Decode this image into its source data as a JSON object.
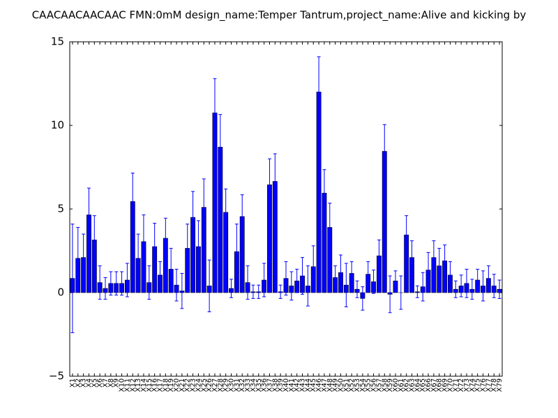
{
  "chart_data": {
    "type": "bar",
    "title": "CAACAACAACAAC  FMN:0mM  design_name:Temper Tantrum,project_name:Alive and kicking by",
    "categories": [
      "X1",
      "X2",
      "X3",
      "X4",
      "X5",
      "X6",
      "X7",
      "X8",
      "X9",
      "X10",
      "X11",
      "X12",
      "X13",
      "X14",
      "X15",
      "X16",
      "X17",
      "X18",
      "X19",
      "X20",
      "X21",
      "X22",
      "X23",
      "X24",
      "X25",
      "X26",
      "X27",
      "X28",
      "X29",
      "X30",
      "X31",
      "X32",
      "X33",
      "X34",
      "X35",
      "X36",
      "X37",
      "X38",
      "X39",
      "X40",
      "X41",
      "X42",
      "X43",
      "X44",
      "X45",
      "X46",
      "X47",
      "X48",
      "X49",
      "X50",
      "X51",
      "X52",
      "X53",
      "X54",
      "X55",
      "X56",
      "X57",
      "X58",
      "X59",
      "X60",
      "X61",
      "X62",
      "X63",
      "X64",
      "X65",
      "X66",
      "X67",
      "X68",
      "X69",
      "X70",
      "X71",
      "X72",
      "X73",
      "X74",
      "X75",
      "X76",
      "X77",
      "X78",
      "X79"
    ],
    "values": [
      0.85,
      2.05,
      2.1,
      4.65,
      3.15,
      0.6,
      0.25,
      0.55,
      0.55,
      0.55,
      0.75,
      5.45,
      2.05,
      3.05,
      0.6,
      2.75,
      1.05,
      3.25,
      1.4,
      0.45,
      0.1,
      2.65,
      4.5,
      2.75,
      5.1,
      0.4,
      10.75,
      8.7,
      4.8,
      0.25,
      2.45,
      4.55,
      0.6,
      0.05,
      0.05,
      0.75,
      6.45,
      6.65,
      0.05,
      0.85,
      0.4,
      0.7,
      1.0,
      0.4,
      1.55,
      12.0,
      5.95,
      3.9,
      0.9,
      1.2,
      0.45,
      1.15,
      0.2,
      -0.35,
      1.1,
      0.65,
      2.2,
      8.45,
      -0.1,
      0.7,
      0.0,
      3.45,
      2.1,
      0.05,
      0.35,
      1.35,
      2.1,
      1.6,
      1.9,
      1.05,
      0.2,
      0.4,
      0.55,
      0.2,
      0.75,
      0.4,
      0.85,
      0.4,
      0.2
    ],
    "errors": [
      3.25,
      1.85,
      1.4,
      1.6,
      1.45,
      1.0,
      0.65,
      0.7,
      0.7,
      0.7,
      1.0,
      1.7,
      1.45,
      1.6,
      1.0,
      1.4,
      0.8,
      1.2,
      1.25,
      0.95,
      1.05,
      1.45,
      1.55,
      1.55,
      1.7,
      1.55,
      2.05,
      1.95,
      1.4,
      0.55,
      1.65,
      1.3,
      1.0,
      0.4,
      0.4,
      1.0,
      1.55,
      1.65,
      0.4,
      1.0,
      0.85,
      0.7,
      1.1,
      1.2,
      1.25,
      2.1,
      1.4,
      1.45,
      0.7,
      1.05,
      1.3,
      0.7,
      0.5,
      0.7,
      0.75,
      0.7,
      0.95,
      1.6,
      1.1,
      0.6,
      1.0,
      1.15,
      1.0,
      0.35,
      0.85,
      1.05,
      1.0,
      1.05,
      0.95,
      0.8,
      0.5,
      0.65,
      0.85,
      0.6,
      0.65,
      0.9,
      0.75,
      0.7,
      0.55
    ],
    "color": "#0000ff",
    "error_color": "#0000ff",
    "ylim": [
      -5,
      15
    ],
    "yticks": [
      {
        "value": -5,
        "label": "−5"
      },
      0,
      5,
      10,
      15
    ],
    "grid": false
  }
}
